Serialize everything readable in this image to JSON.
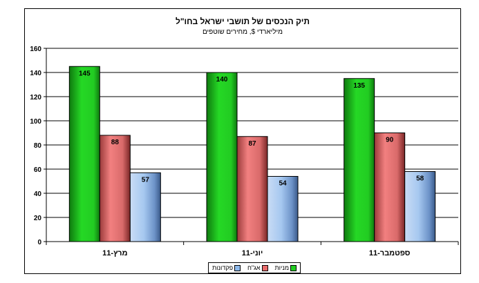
{
  "chart_data": {
    "type": "bar",
    "title": "תיק הנכסים של תושבי ישראל בחו\"ל",
    "subtitle": "מיליארדי $, מחירים שוטפים",
    "categories": [
      "מרץ-11",
      "יוני-11",
      "ספטמבר-11"
    ],
    "series": [
      {
        "name": "מניות",
        "values": [
          145,
          140,
          135
        ],
        "color": "#22cc22"
      },
      {
        "name": "אג\"ח",
        "values": [
          88,
          87,
          90
        ],
        "color": "#e86b6b"
      },
      {
        "name": "פקדונות",
        "values": [
          57,
          54,
          58
        ],
        "color": "#8cb8ea"
      }
    ],
    "y_ticks": [
      "0",
      "20",
      "40",
      "60",
      "80",
      "100",
      "120",
      "140",
      "160"
    ],
    "ylim": [
      0,
      160
    ],
    "grid": true,
    "legend_position": "bottom"
  }
}
